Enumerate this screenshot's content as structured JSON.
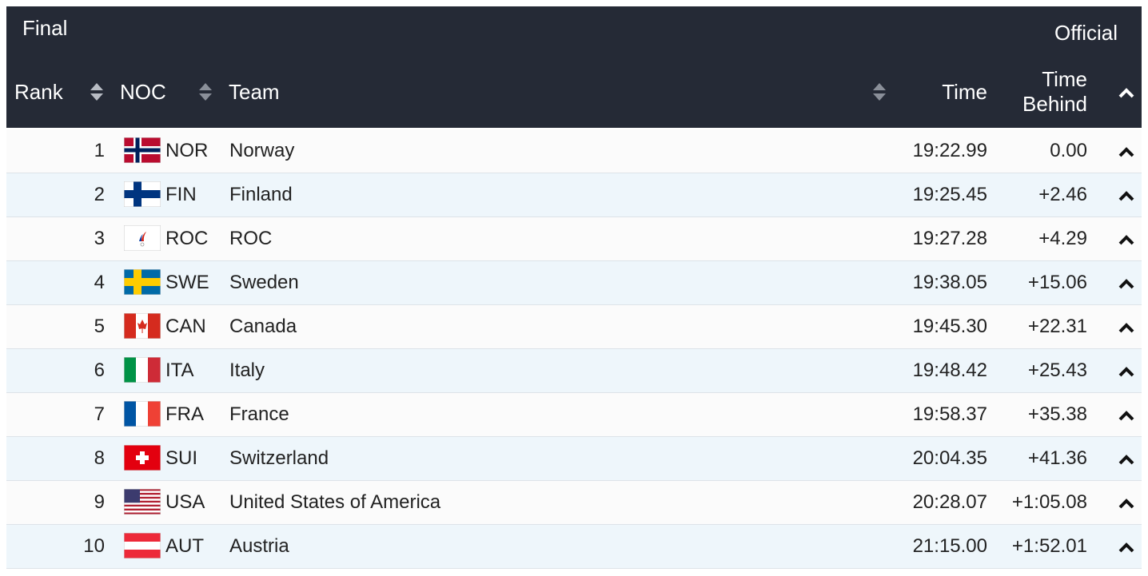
{
  "header": {
    "title": "Final",
    "status": "Official"
  },
  "table": {
    "columns": [
      "Rank",
      "NOC",
      "Team",
      "Time",
      "Time Behind"
    ],
    "rows": [
      [
        "1",
        "NOR",
        "Norway",
        "19:22.99",
        "0.00"
      ],
      [
        "2",
        "FIN",
        "Finland",
        "19:25.45",
        "+2.46"
      ],
      [
        "3",
        "ROC",
        "ROC",
        "19:27.28",
        "+4.29"
      ],
      [
        "4",
        "SWE",
        "Sweden",
        "19:38.05",
        "+15.06"
      ],
      [
        "5",
        "CAN",
        "Canada",
        "19:45.30",
        "+22.31"
      ],
      [
        "6",
        "ITA",
        "Italy",
        "19:48.42",
        "+25.43"
      ],
      [
        "7",
        "FRA",
        "France",
        "19:58.37",
        "+35.38"
      ],
      [
        "8",
        "SUI",
        "Switzerland",
        "20:04.35",
        "+41.36"
      ],
      [
        "9",
        "USA",
        "United States of America",
        "20:28.07",
        "+1:05.08"
      ],
      [
        "10",
        "AUT",
        "Austria",
        "21:15.00",
        "+1:52.01"
      ]
    ]
  }
}
